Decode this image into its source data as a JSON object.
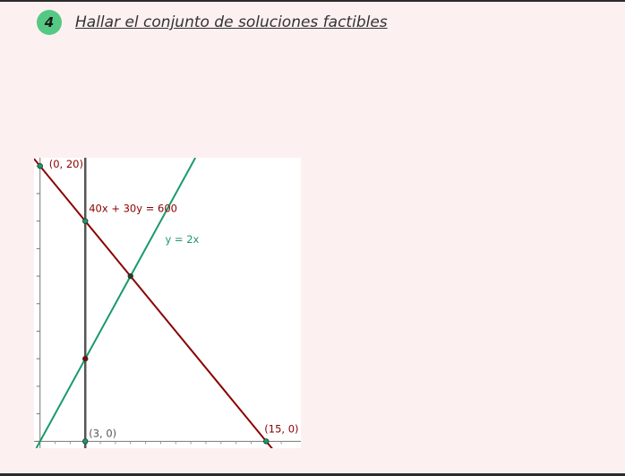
{
  "header": {
    "step_number": "4",
    "title": "Hallar el conjunto de soluciones factibles"
  },
  "colors": {
    "page_background": "#fdf0f1",
    "badge": "#55c984",
    "constraint_line": "#8b0000",
    "ratio_line": "#1a9a6c",
    "vertical_line": "#555555"
  },
  "chart_data": {
    "type": "line",
    "xlim": [
      -0.4,
      17.3
    ],
    "ylim": [
      -0.5,
      20.6
    ],
    "y_ticks": [
      0,
      2,
      4,
      6,
      8,
      10,
      12,
      14,
      16,
      18,
      20
    ],
    "grid": false,
    "series": [
      {
        "key": "constraint",
        "name": "40x + 30y = 600",
        "points": [
          [
            -0.4,
            20.53
          ],
          [
            15.4,
            -0.53
          ]
        ]
      },
      {
        "key": "ratio",
        "name": "y = 2x",
        "points": [
          [
            -0.25,
            -0.5
          ],
          [
            10.3,
            20.6
          ]
        ]
      },
      {
        "key": "vertical",
        "points": [
          [
            3,
            -0.5
          ],
          [
            3,
            20.6
          ]
        ]
      }
    ],
    "points": [
      {
        "x": 0,
        "y": 20,
        "label": "(0, 20)"
      },
      {
        "x": 3,
        "y": 16
      },
      {
        "x": 6,
        "y": 12
      },
      {
        "x": 3,
        "y": 6
      },
      {
        "x": 3,
        "y": 0,
        "label": "(3, 0)"
      },
      {
        "x": 15,
        "y": 0,
        "label": "(15, 0)"
      }
    ]
  }
}
